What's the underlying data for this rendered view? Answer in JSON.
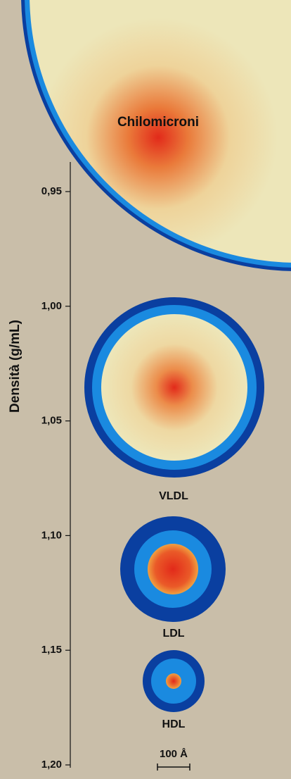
{
  "axis": {
    "label": "Densità (g/mL)",
    "ticks": [
      "0,95",
      "1,00",
      "1,05",
      "1,10",
      "1,15",
      "1,20"
    ]
  },
  "particles": [
    {
      "label": "Chilomicroni"
    },
    {
      "label": "VLDL"
    },
    {
      "label": "LDL"
    },
    {
      "label": "HDL"
    }
  ],
  "scale_bar": {
    "label": "100 Å"
  }
}
